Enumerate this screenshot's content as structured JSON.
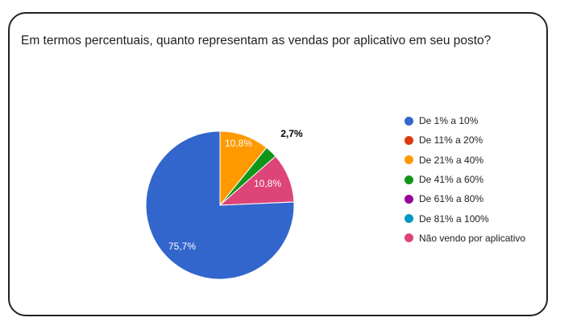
{
  "chart_data": {
    "type": "pie",
    "title": "Em termos percentuais, quanto representam as vendas por aplicativo em seu posto?",
    "legend_position": "right",
    "slices": [
      {
        "label": "De 1% a 10%",
        "value": 75.7,
        "display": "75,7%",
        "color": "#3366cc"
      },
      {
        "label": "De 11% a 20%",
        "value": 0,
        "display": "",
        "color": "#dc3912"
      },
      {
        "label": "De 21% a 40%",
        "value": 10.8,
        "display": "10,8%",
        "color": "#ff9900"
      },
      {
        "label": "De 41% a 60%",
        "value": 2.7,
        "display": "2,7%",
        "color": "#109618"
      },
      {
        "label": "De 61% a 80%",
        "value": 0,
        "display": "",
        "color": "#990099"
      },
      {
        "label": "De 81% a 100%",
        "value": 0,
        "display": "",
        "color": "#0099c6"
      },
      {
        "label": "Não vendo por aplicativo",
        "value": 10.8,
        "display": "10,8%",
        "color": "#dd4477"
      }
    ]
  }
}
